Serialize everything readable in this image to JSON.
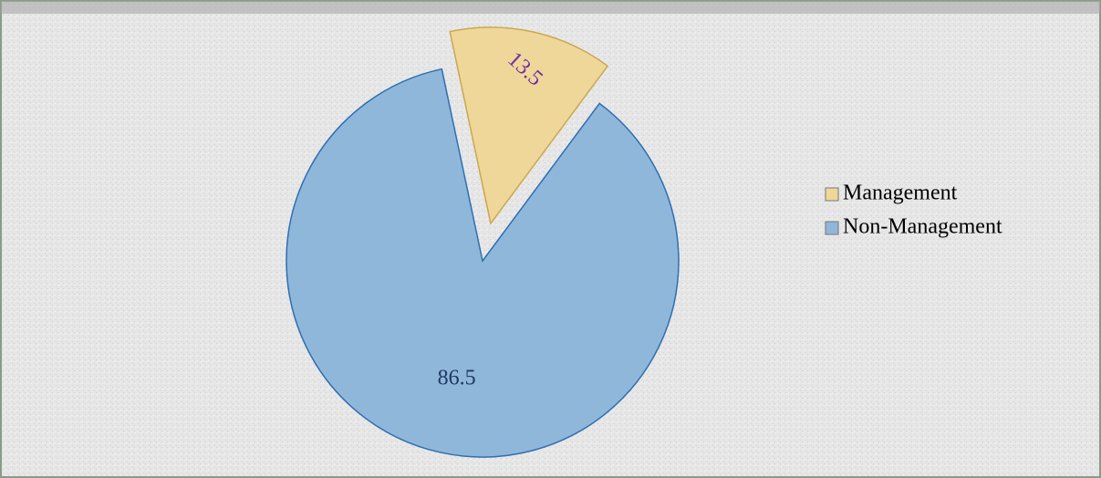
{
  "chart_data": {
    "type": "pie",
    "categories": [
      "Management",
      "Non-Management"
    ],
    "values": [
      13.5,
      86.5
    ],
    "colors": [
      "#efd79a",
      "#8fb7da"
    ],
    "label_colors": [
      "#7030a0",
      "#1f3864"
    ],
    "exploded": [
      true,
      false
    ],
    "legend": "right"
  }
}
